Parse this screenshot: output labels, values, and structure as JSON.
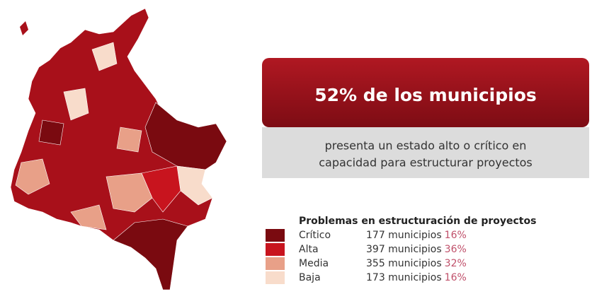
{
  "headline": "52% de los municipios",
  "subtitle_lines": [
    "presenta un estado alto o crítico en",
    "capacidad para estructurar proyectos"
  ],
  "legend": {
    "title": "Problemas en estructuración de proyectos",
    "items": [
      {
        "label": "Crítico",
        "count": "177 municipios",
        "percent": "16%",
        "color": "#7a0a10"
      },
      {
        "label": "Alta",
        "count": "397 municipios",
        "percent": "36%",
        "color": "#c8141e"
      },
      {
        "label": "Media",
        "count": "355 municipios",
        "percent": "32%",
        "color": "#e8a088"
      },
      {
        "label": "Baja",
        "count": "173 municipios",
        "percent": "16%",
        "color": "#f8dccb"
      }
    ]
  }
}
